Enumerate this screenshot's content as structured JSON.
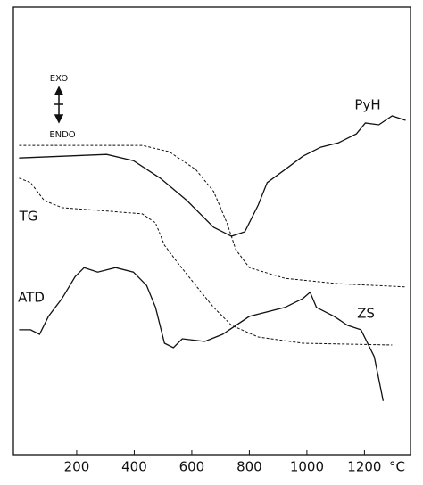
{
  "chart_data": {
    "type": "line",
    "annotations": {
      "exo": "EXO",
      "endo": "ENDO",
      "pyh": "PyH",
      "tg": "TG",
      "atd": "ATD",
      "zs": "ZS"
    },
    "x_label": "°C",
    "xlim": [
      -20,
      1360
    ],
    "xticks": [
      200,
      400,
      600,
      800,
      1000,
      1200
    ],
    "ylim": [
      0,
      100
    ],
    "grid": false,
    "series": [
      {
        "color": "#111",
        "style": "solid",
        "x": [
          0,
          304,
          397,
          490,
          583,
          676,
          738,
          784,
          831,
          862,
          924,
          986,
          1048,
          1110,
          1172,
          1203,
          1250,
          1296,
          1343
        ],
        "values": [
          66.3,
          67.1,
          65.7,
          61.8,
          56.8,
          50.8,
          48.8,
          49.8,
          55.8,
          60.8,
          63.7,
          66.7,
          68.7,
          69.7,
          71.7,
          74.1,
          73.7,
          75.7,
          74.7
        ]
      },
      {
        "color": "#111",
        "style": "dashed",
        "x": [
          0,
          428,
          521,
          614,
          676,
          722,
          753,
          800,
          924,
          1110,
          1343
        ],
        "values": [
          69.1,
          69.1,
          67.7,
          63.7,
          58.8,
          51.8,
          45.8,
          41.8,
          39.4,
          38.2,
          37.5
        ]
      },
      {
        "color": "#111",
        "style": "dashed",
        "x": [
          0,
          40,
          87,
          149,
          273,
          428,
          474,
          505,
          552,
          614,
          676,
          738,
          831,
          986,
          1296
        ],
        "values": [
          61.8,
          60.8,
          56.8,
          55.2,
          54.6,
          53.8,
          51.8,
          46.8,
          42.8,
          37.8,
          32.9,
          28.9,
          26.3,
          24.9,
          24.5
        ]
      },
      {
        "color": "#111",
        "style": "solid",
        "x": [
          0,
          40,
          71,
          102,
          149,
          195,
          226,
          273,
          335,
          397,
          443,
          474,
          505,
          536,
          567,
          645,
          707,
          800,
          924,
          986,
          1011,
          1033,
          1095,
          1141,
          1188,
          1234,
          1265
        ],
        "values": [
          27.9,
          27.9,
          26.9,
          30.9,
          34.9,
          39.8,
          41.8,
          40.8,
          41.8,
          40.8,
          37.8,
          32.9,
          24.9,
          23.9,
          25.9,
          25.3,
          26.9,
          30.9,
          32.9,
          34.9,
          36.3,
          32.9,
          30.9,
          28.9,
          27.9,
          21.9,
          12.0
        ]
      }
    ]
  }
}
